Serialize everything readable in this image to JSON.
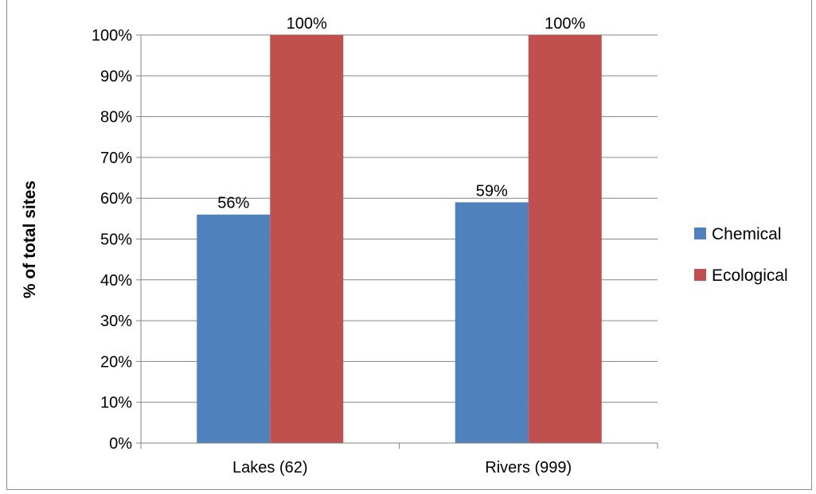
{
  "chart_data": {
    "type": "bar",
    "title": "",
    "xlabel": "",
    "ylabel": "% of total sites",
    "categories": [
      "Lakes (62)",
      "Rivers (999)"
    ],
    "series": [
      {
        "name": "Chemical",
        "values": [
          56,
          59
        ],
        "labels": [
          "56%",
          "59%"
        ],
        "color": "#4f81bd"
      },
      {
        "name": "Ecological",
        "values": [
          100,
          100
        ],
        "labels": [
          "100%",
          "100%"
        ],
        "color": "#c0504d"
      }
    ],
    "ylim": [
      0,
      100
    ],
    "yticks": [
      0,
      10,
      20,
      30,
      40,
      50,
      60,
      70,
      80,
      90,
      100
    ],
    "ytick_labels": [
      "0%",
      "10%",
      "20%",
      "30%",
      "40%",
      "50%",
      "60%",
      "70%",
      "80%",
      "90%",
      "100%"
    ],
    "grid": true,
    "legend_position": "right",
    "gridline_color": "#868686"
  }
}
